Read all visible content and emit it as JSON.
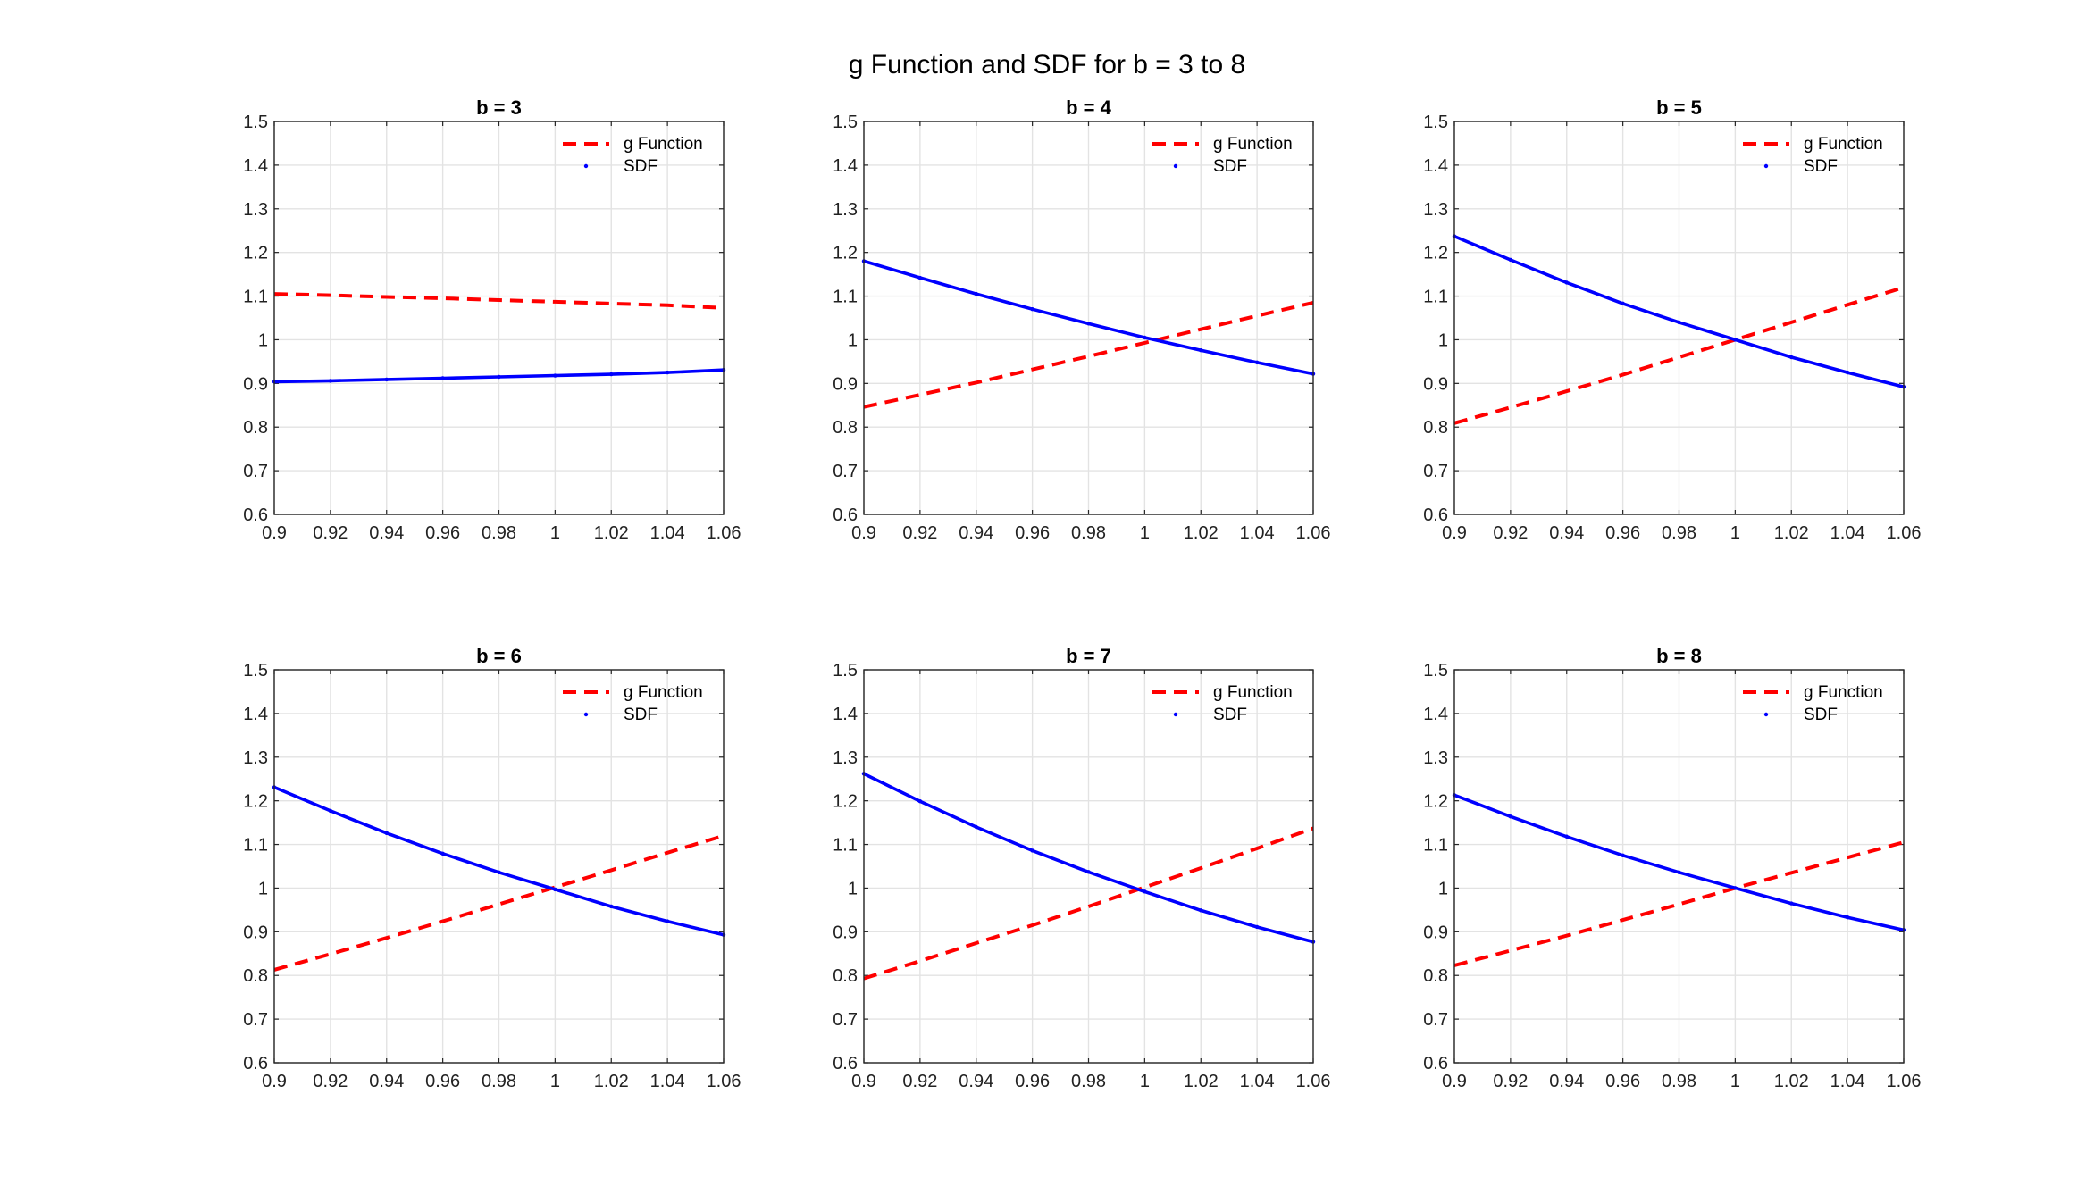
{
  "figure_title": "g Function and SDF for b = 3 to 8",
  "colors": {
    "g_function": "#ff0000",
    "sdf": "#0000ff",
    "grid": "#e3e3e3",
    "axes": "#262626"
  },
  "chart_data": [
    {
      "type": "line",
      "title": "b = 3",
      "xlabel": "",
      "ylabel": "",
      "xlim": [
        0.9,
        1.06
      ],
      "ylim": [
        0.6,
        1.5
      ],
      "xticks": [
        0.9,
        0.92,
        0.94,
        0.96,
        0.98,
        1,
        1.02,
        1.04,
        1.06
      ],
      "yticks": [
        0.6,
        0.7,
        0.8,
        0.9,
        1,
        1.1,
        1.2,
        1.3,
        1.4,
        1.5
      ],
      "grid": true,
      "legend_position": "top-right",
      "series": [
        {
          "name": "g Function",
          "style": "dashed",
          "x": [
            0.9,
            0.92,
            0.94,
            0.96,
            0.98,
            1,
            1.02,
            1.04,
            1.06
          ],
          "y": [
            1.105,
            1.102,
            1.098,
            1.095,
            1.091,
            1.087,
            1.083,
            1.079,
            1.073
          ]
        },
        {
          "name": "SDF",
          "style": "dotted-marker",
          "x": [
            0.9,
            0.92,
            0.94,
            0.96,
            0.98,
            1,
            1.02,
            1.04,
            1.06
          ],
          "y": [
            0.904,
            0.906,
            0.909,
            0.912,
            0.915,
            0.918,
            0.921,
            0.925,
            0.931
          ]
        }
      ]
    },
    {
      "type": "line",
      "title": "b = 4",
      "xlabel": "",
      "ylabel": "",
      "xlim": [
        0.9,
        1.06
      ],
      "ylim": [
        0.6,
        1.5
      ],
      "xticks": [
        0.9,
        0.92,
        0.94,
        0.96,
        0.98,
        1,
        1.02,
        1.04,
        1.06
      ],
      "yticks": [
        0.6,
        0.7,
        0.8,
        0.9,
        1,
        1.1,
        1.2,
        1.3,
        1.4,
        1.5
      ],
      "grid": true,
      "legend_position": "top-right",
      "series": [
        {
          "name": "g Function",
          "style": "dashed",
          "x": [
            0.9,
            0.92,
            0.94,
            0.96,
            0.98,
            1,
            1.02,
            1.04,
            1.06
          ],
          "y": [
            0.846,
            0.874,
            0.902,
            0.932,
            0.962,
            0.993,
            1.024,
            1.055,
            1.085
          ]
        },
        {
          "name": "SDF",
          "style": "dotted-marker",
          "x": [
            0.9,
            0.92,
            0.94,
            0.96,
            0.98,
            1,
            1.02,
            1.04,
            1.06
          ],
          "y": [
            1.18,
            1.142,
            1.105,
            1.07,
            1.037,
            1.005,
            0.976,
            0.948,
            0.922
          ]
        }
      ]
    },
    {
      "type": "line",
      "title": "b = 5",
      "xlabel": "",
      "ylabel": "",
      "xlim": [
        0.9,
        1.06
      ],
      "ylim": [
        0.6,
        1.5
      ],
      "xticks": [
        0.9,
        0.92,
        0.94,
        0.96,
        0.98,
        1,
        1.02,
        1.04,
        1.06
      ],
      "yticks": [
        0.6,
        0.7,
        0.8,
        0.9,
        1,
        1.1,
        1.2,
        1.3,
        1.4,
        1.5
      ],
      "grid": true,
      "legend_position": "top-right",
      "series": [
        {
          "name": "g Function",
          "style": "dashed",
          "x": [
            0.9,
            0.92,
            0.94,
            0.96,
            0.98,
            1,
            1.02,
            1.04,
            1.06
          ],
          "y": [
            0.809,
            0.845,
            0.882,
            0.92,
            0.96,
            1.0,
            1.04,
            1.08,
            1.12
          ]
        },
        {
          "name": "SDF",
          "style": "dotted-marker",
          "x": [
            0.9,
            0.92,
            0.94,
            0.96,
            0.98,
            1,
            1.02,
            1.04,
            1.06
          ],
          "y": [
            1.237,
            1.183,
            1.131,
            1.083,
            1.04,
            1.0,
            0.96,
            0.925,
            0.892
          ]
        }
      ]
    },
    {
      "type": "line",
      "title": "b = 6",
      "xlabel": "",
      "ylabel": "",
      "xlim": [
        0.9,
        1.06
      ],
      "ylim": [
        0.6,
        1.5
      ],
      "xticks": [
        0.9,
        0.92,
        0.94,
        0.96,
        0.98,
        1,
        1.02,
        1.04,
        1.06
      ],
      "yticks": [
        0.6,
        0.7,
        0.8,
        0.9,
        1,
        1.1,
        1.2,
        1.3,
        1.4,
        1.5
      ],
      "grid": true,
      "legend_position": "top-right",
      "series": [
        {
          "name": "g Function",
          "style": "dashed",
          "x": [
            0.9,
            0.92,
            0.94,
            0.96,
            0.98,
            1,
            1.02,
            1.04,
            1.06
          ],
          "y": [
            0.813,
            0.849,
            0.886,
            0.924,
            0.963,
            1.002,
            1.041,
            1.081,
            1.12
          ]
        },
        {
          "name": "SDF",
          "style": "dotted-marker",
          "x": [
            0.9,
            0.92,
            0.94,
            0.96,
            0.98,
            1,
            1.02,
            1.04,
            1.06
          ],
          "y": [
            1.231,
            1.177,
            1.126,
            1.079,
            1.036,
            0.997,
            0.958,
            0.924,
            0.893
          ]
        }
      ]
    },
    {
      "type": "line",
      "title": "b = 7",
      "xlabel": "",
      "ylabel": "",
      "xlim": [
        0.9,
        1.06
      ],
      "ylim": [
        0.6,
        1.5
      ],
      "xticks": [
        0.9,
        0.92,
        0.94,
        0.96,
        0.98,
        1,
        1.02,
        1.04,
        1.06
      ],
      "yticks": [
        0.6,
        0.7,
        0.8,
        0.9,
        1,
        1.1,
        1.2,
        1.3,
        1.4,
        1.5
      ],
      "grid": true,
      "legend_position": "top-right",
      "series": [
        {
          "name": "g Function",
          "style": "dashed",
          "x": [
            0.9,
            0.92,
            0.94,
            0.96,
            0.98,
            1,
            1.02,
            1.04,
            1.06
          ],
          "y": [
            0.793,
            0.833,
            0.874,
            0.915,
            0.958,
            1.002,
            1.046,
            1.091,
            1.137
          ]
        },
        {
          "name": "SDF",
          "style": "dotted-marker",
          "x": [
            0.9,
            0.92,
            0.94,
            0.96,
            0.98,
            1,
            1.02,
            1.04,
            1.06
          ],
          "y": [
            1.262,
            1.199,
            1.14,
            1.086,
            1.037,
            0.992,
            0.949,
            0.911,
            0.877
          ]
        }
      ]
    },
    {
      "type": "line",
      "title": "b = 8",
      "xlabel": "",
      "ylabel": "",
      "xlim": [
        0.9,
        1.06
      ],
      "ylim": [
        0.6,
        1.5
      ],
      "xticks": [
        0.9,
        0.92,
        0.94,
        0.96,
        0.98,
        1,
        1.02,
        1.04,
        1.06
      ],
      "yticks": [
        0.6,
        0.7,
        0.8,
        0.9,
        1,
        1.1,
        1.2,
        1.3,
        1.4,
        1.5
      ],
      "grid": true,
      "legend_position": "top-right",
      "series": [
        {
          "name": "g Function",
          "style": "dashed",
          "x": [
            0.9,
            0.92,
            0.94,
            0.96,
            0.98,
            1,
            1.02,
            1.04,
            1.06
          ],
          "y": [
            0.823,
            0.857,
            0.891,
            0.927,
            0.963,
            1.0,
            1.035,
            1.07,
            1.105
          ]
        },
        {
          "name": "SDF",
          "style": "dotted-marker",
          "x": [
            0.9,
            0.92,
            0.94,
            0.96,
            0.98,
            1,
            1.02,
            1.04,
            1.06
          ],
          "y": [
            1.213,
            1.164,
            1.118,
            1.075,
            1.036,
            1.0,
            0.965,
            0.933,
            0.904
          ]
        }
      ]
    }
  ]
}
